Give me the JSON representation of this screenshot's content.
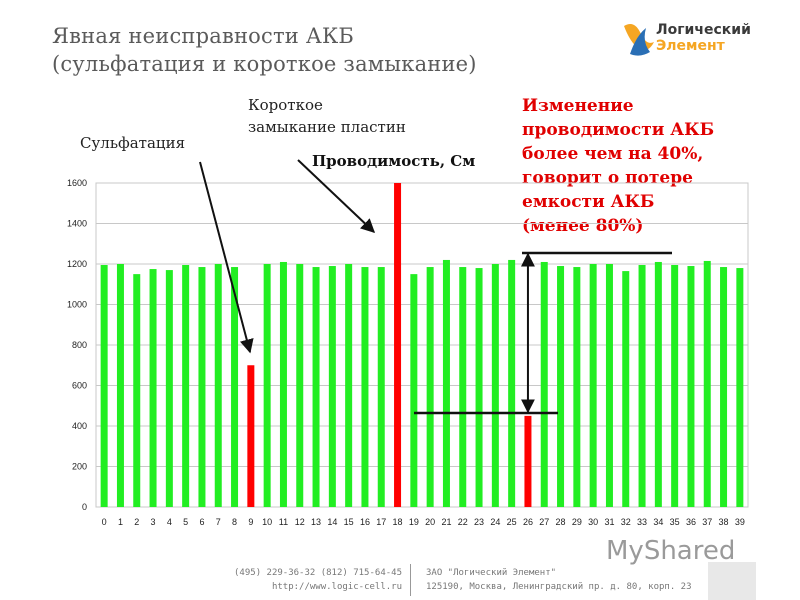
{
  "slide": {
    "title_line1": "Явная неисправности АКБ",
    "title_line2": "(сульфатация и короткое замыкание)",
    "logo_line1": "Логический",
    "logo_line2": "Элемент",
    "annotation_sulfation": "Сульфатация",
    "annotation_short_line1": "Короткое",
    "annotation_short_line2": "замыкание пластин",
    "annotation_red": [
      "Изменение",
      "проводимости АКБ",
      "более чем на 40%,",
      "говорит о потере",
      "емкости АКБ",
      "(менее 80%)"
    ],
    "footer_phone": "(495) 229-36-32  (812) 715-64-45",
    "footer_url": "http://www.logic-cell.ru",
    "footer_company": "ЗАО \"Логический Элемент\"",
    "footer_address": "125190, Москва, Ленинградский пр. д. 80, корп. 23",
    "watermark": "MyShared"
  },
  "colors": {
    "normal_bar": "#22ee22",
    "faulty_bar": "#ff0000",
    "annotation_red": "#e00000",
    "logo_orange": "#f5a623",
    "logo_blue": "#2a6fb5"
  },
  "chart_data": {
    "type": "bar",
    "title": "Проводимость, См",
    "xlabel": "",
    "ylabel": "",
    "ylim": [
      0,
      1600
    ],
    "yticks": [
      0,
      200,
      400,
      600,
      800,
      1000,
      1200,
      1400,
      1600
    ],
    "grid": true,
    "categories": [
      "0",
      "1",
      "2",
      "3",
      "4",
      "5",
      "6",
      "7",
      "8",
      "9",
      "10",
      "11",
      "12",
      "13",
      "14",
      "15",
      "16",
      "17",
      "18",
      "19",
      "20",
      "21",
      "22",
      "23",
      "24",
      "25",
      "26",
      "27",
      "28",
      "29",
      "30",
      "31",
      "32",
      "33",
      "34",
      "35",
      "36",
      "37",
      "38",
      "39"
    ],
    "values": [
      1195,
      1200,
      1150,
      1175,
      1170,
      1195,
      1185,
      1200,
      1185,
      700,
      1200,
      1210,
      1200,
      1185,
      1190,
      1200,
      1185,
      1185,
      1600,
      1150,
      1185,
      1220,
      1185,
      1180,
      1200,
      1220,
      450,
      1210,
      1190,
      1185,
      1200,
      1200,
      1165,
      1195,
      1210,
      1195,
      1190,
      1215,
      1185,
      1180
    ],
    "faulty_indices": [
      9,
      18,
      26
    ]
  }
}
